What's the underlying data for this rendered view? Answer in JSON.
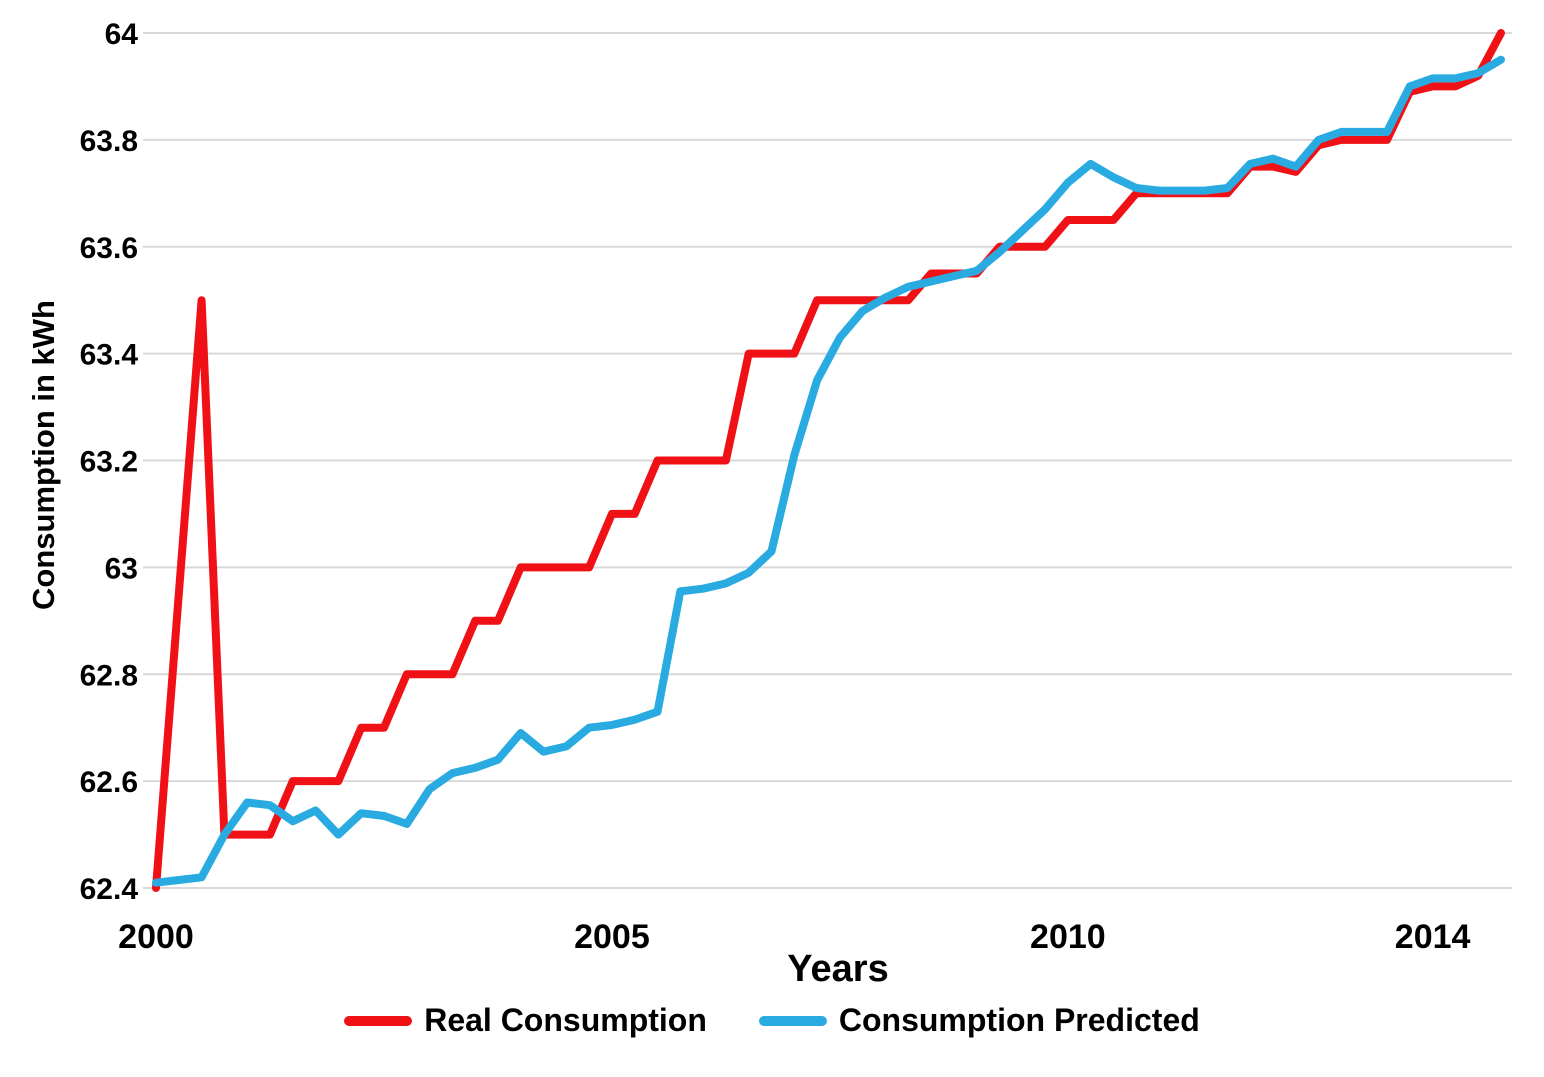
{
  "chart_data": {
    "type": "line",
    "title": "",
    "xlabel": "Years",
    "ylabel": "Consumption in kWh",
    "ylim": [
      62.4,
      64.0
    ],
    "grid": true,
    "legend_position": "bottom",
    "y_tick_labels": [
      "62.4",
      "62.6",
      "62.8",
      "63",
      "63.2",
      "63.4",
      "63.6",
      "63.8",
      "64"
    ],
    "x_tick_labels": [
      "2000",
      "2005",
      "2010",
      "2014"
    ],
    "x_tick_indices": [
      0,
      20,
      40,
      56
    ],
    "x_start_year": 2000,
    "x_step_years": 0.25,
    "n_points": 60,
    "grid_color": "#d9d9d9",
    "series": [
      {
        "name": "Real Consumption",
        "color": "#f01116",
        "values": [
          62.4,
          62.95,
          63.5,
          62.5,
          62.5,
          62.5,
          62.6,
          62.6,
          62.6,
          62.7,
          62.7,
          62.8,
          62.8,
          62.8,
          62.9,
          62.9,
          63.0,
          63.0,
          63.0,
          63.0,
          63.1,
          63.1,
          63.2,
          63.2,
          63.2,
          63.2,
          63.4,
          63.4,
          63.4,
          63.5,
          63.5,
          63.5,
          63.5,
          63.5,
          63.55,
          63.55,
          63.55,
          63.6,
          63.6,
          63.6,
          63.65,
          63.65,
          63.65,
          63.7,
          63.7,
          63.7,
          63.7,
          63.7,
          63.75,
          63.75,
          63.74,
          63.79,
          63.8,
          63.8,
          63.8,
          63.89,
          63.9,
          63.9,
          63.92,
          64.0
        ]
      },
      {
        "name": "Consumption Predicted",
        "color": "#29abe2",
        "values": [
          62.41,
          62.415,
          62.42,
          62.5,
          62.56,
          62.555,
          62.525,
          62.545,
          62.5,
          62.54,
          62.535,
          62.52,
          62.585,
          62.615,
          62.625,
          62.64,
          62.69,
          62.655,
          62.665,
          62.7,
          62.705,
          62.715,
          62.73,
          62.955,
          62.96,
          62.97,
          62.99,
          63.03,
          63.21,
          63.35,
          63.43,
          63.48,
          63.505,
          63.525,
          63.535,
          63.545,
          63.555,
          63.59,
          63.63,
          63.67,
          63.72,
          63.755,
          63.73,
          63.71,
          63.705,
          63.705,
          63.705,
          63.71,
          63.755,
          63.765,
          63.75,
          63.8,
          63.815,
          63.815,
          63.815,
          63.9,
          63.915,
          63.915,
          63.925,
          63.95
        ]
      }
    ]
  }
}
